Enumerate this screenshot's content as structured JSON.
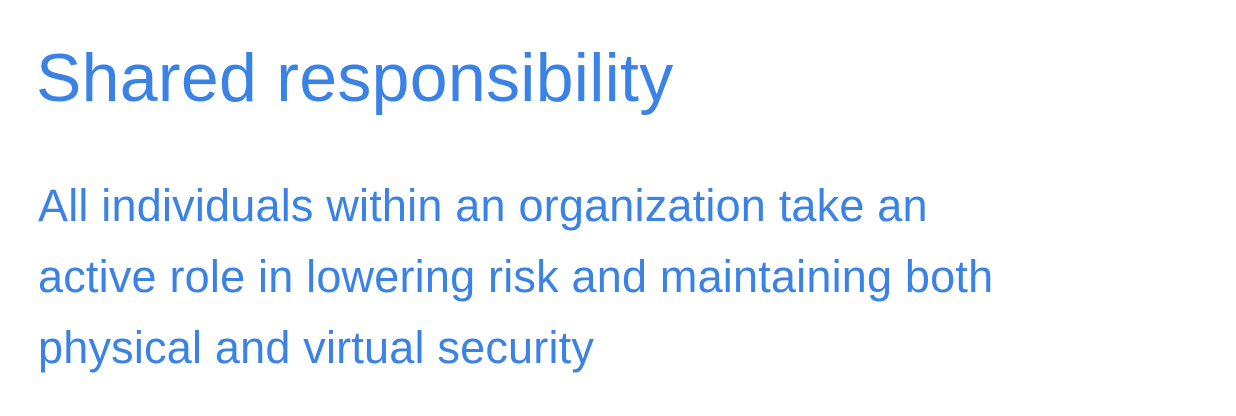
{
  "slide": {
    "title": "Shared responsibility",
    "definition_lines": [
      "All individuals within an organization take an",
      "active role in lowering risk and maintaining both",
      "physical and virtual security"
    ],
    "text_color": "#3b82e6",
    "background_color": "#ffffff"
  }
}
